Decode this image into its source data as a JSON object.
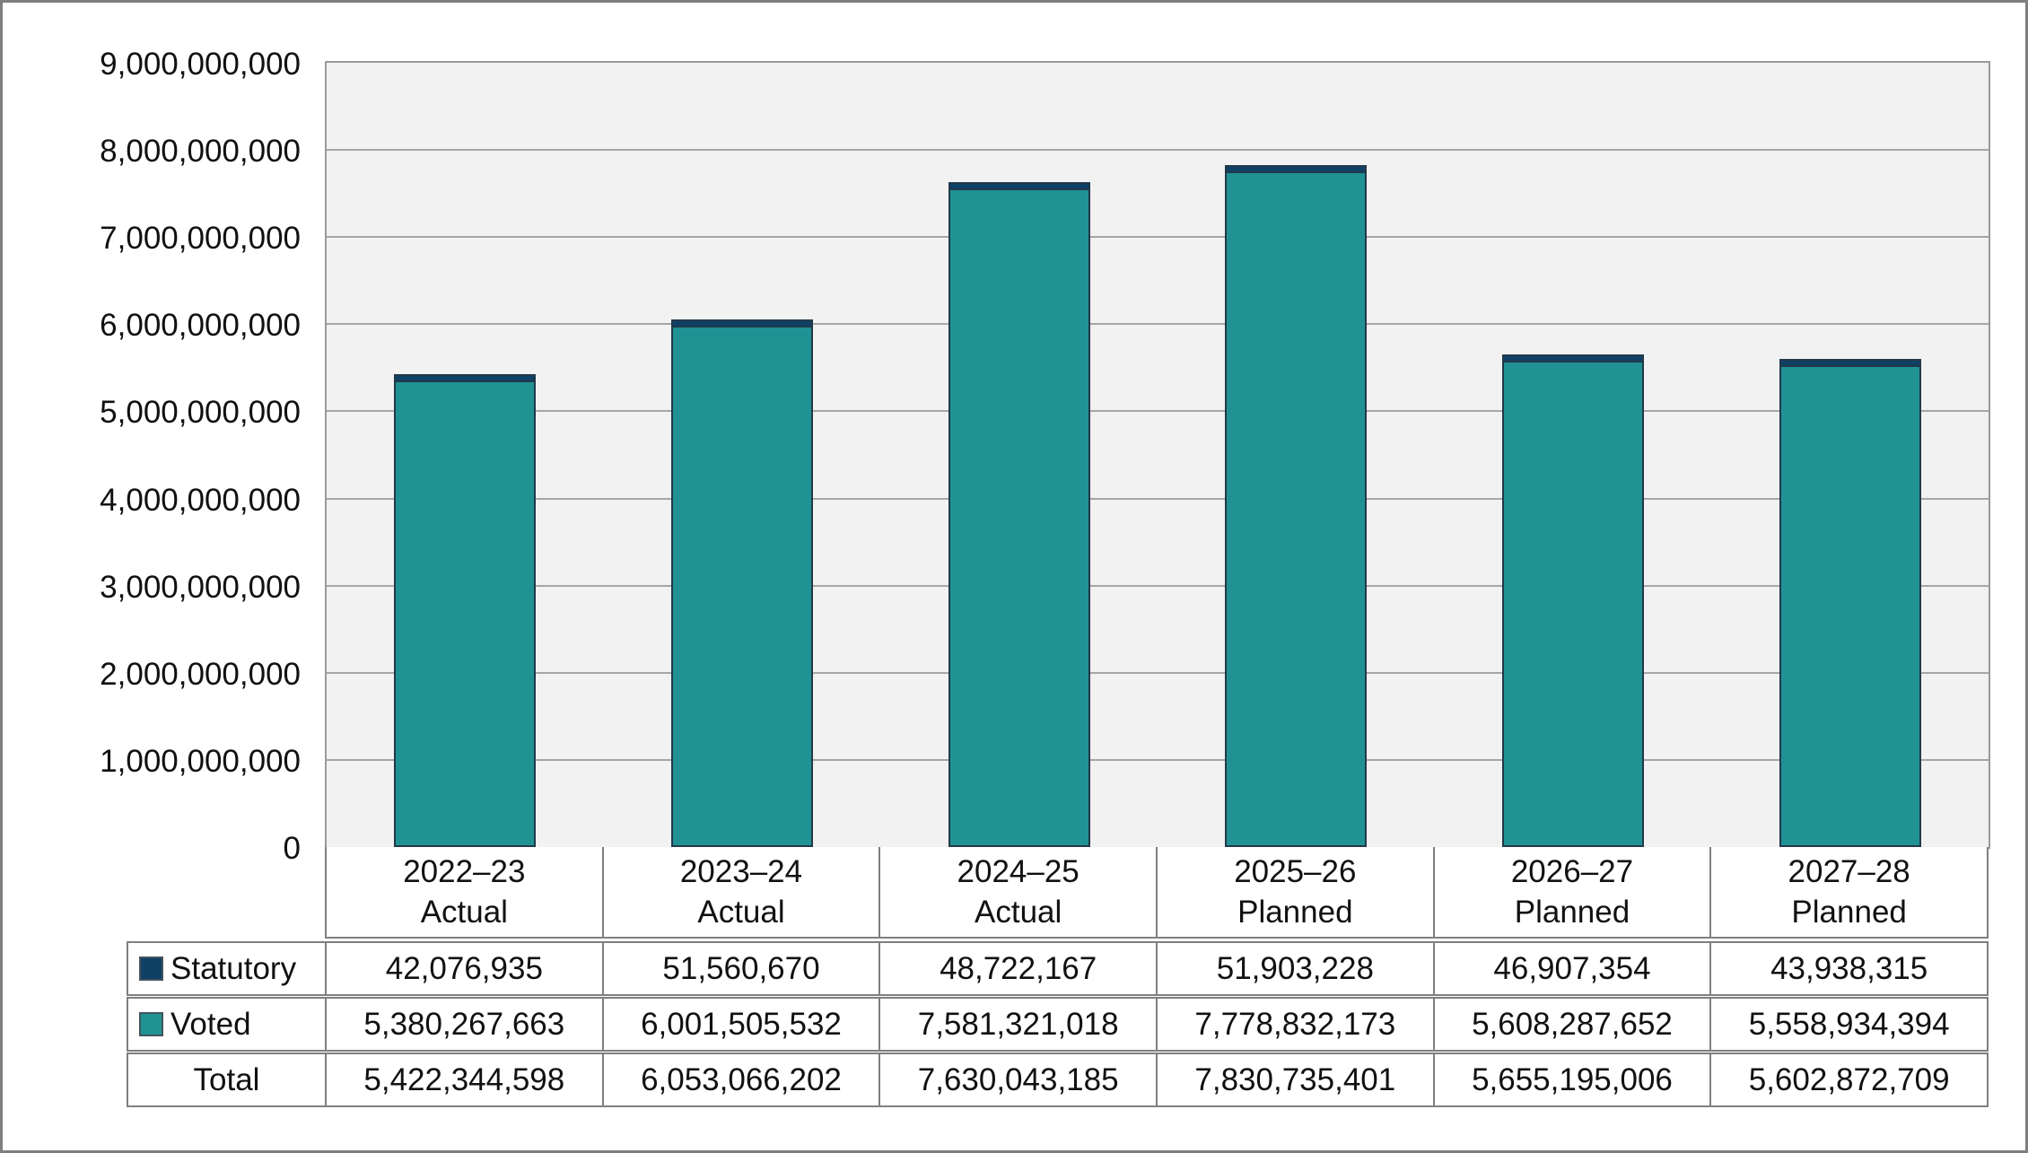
{
  "chart_data": {
    "type": "bar",
    "stacked": true,
    "title": "",
    "xlabel": "",
    "ylabel": "",
    "ylim": [
      0,
      9000000000
    ],
    "ytick_step": 1000000000,
    "grid": true,
    "legend_position": "table-left",
    "plot_background": "#f2f2f2",
    "gridline_color": "#a6a6a6",
    "categories": [
      {
        "year": "2022–23",
        "status": "Actual"
      },
      {
        "year": "2023–24",
        "status": "Actual"
      },
      {
        "year": "2024–25",
        "status": "Actual"
      },
      {
        "year": "2025–26",
        "status": "Planned"
      },
      {
        "year": "2026–27",
        "status": "Planned"
      },
      {
        "year": "2027–28",
        "status": "Planned"
      }
    ],
    "series": [
      {
        "name": "Statutory",
        "color": "#0f4066",
        "values": [
          42076935,
          51560670,
          48722167,
          51903228,
          46907354,
          43938315
        ]
      },
      {
        "name": "Voted",
        "color": "#219294",
        "values": [
          5380267663,
          6001505532,
          7581321018,
          7778832173,
          5608287652,
          5558934394
        ]
      }
    ],
    "totals": [
      5422344598,
      6053066202,
      7630043185,
      7830735401,
      5655195006,
      5602872709
    ],
    "ytick_labels": [
      "0",
      "1,000,000,000",
      "2,000,000,000",
      "3,000,000,000",
      "4,000,000,000",
      "5,000,000,000",
      "6,000,000,000",
      "7,000,000,000",
      "8,000,000,000",
      "9,000,000,000"
    ]
  },
  "table": {
    "rows": [
      {
        "label": "Statutory",
        "swatch": "#0f4066",
        "values": [
          "42,076,935",
          "51,560,670",
          "48,722,167",
          "51,903,228",
          "46,907,354",
          "43,938,315"
        ]
      },
      {
        "label": "Voted",
        "swatch": "#219294",
        "values": [
          "5,380,267,663",
          "6,001,505,532",
          "7,581,321,018",
          "7,778,832,173",
          "5,608,287,652",
          "5,558,934,394"
        ]
      },
      {
        "label": "Total",
        "swatch": null,
        "values": [
          "5,422,344,598",
          "6,053,066,202",
          "7,630,043,185",
          "7,830,735,401",
          "5,655,195,006",
          "5,602,872,709"
        ]
      }
    ]
  }
}
